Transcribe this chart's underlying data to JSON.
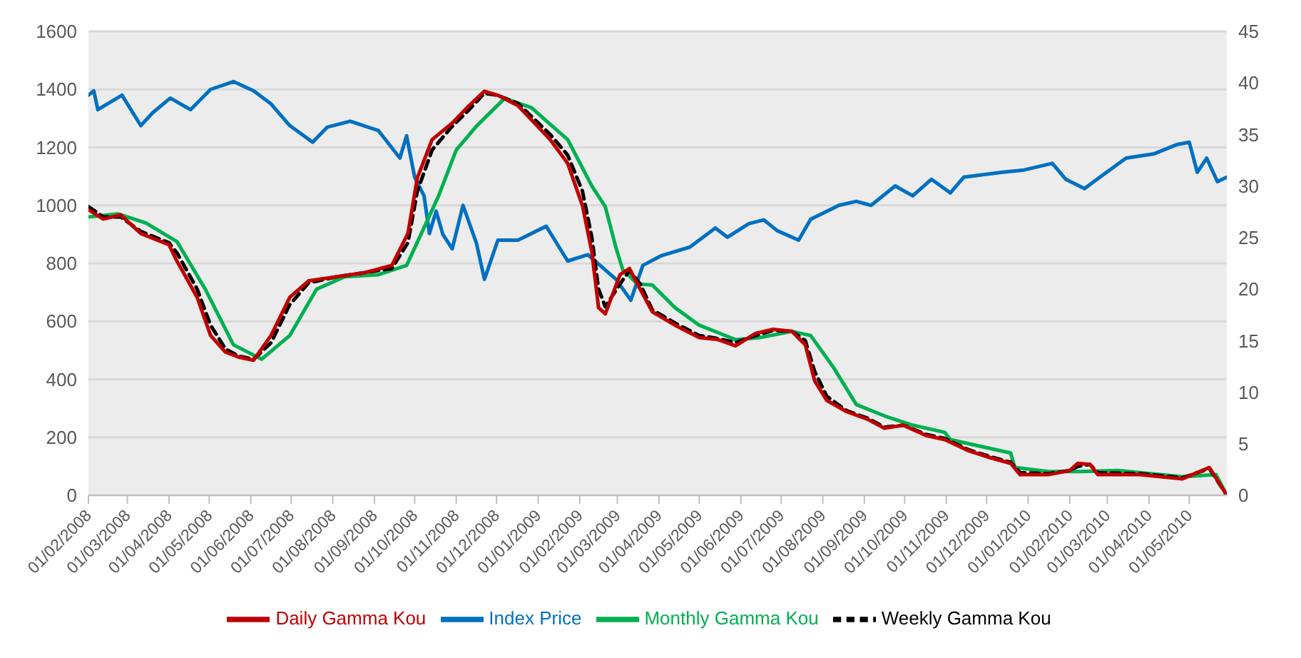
{
  "chart_data": {
    "type": "line",
    "grid": "y",
    "legend": "bottom",
    "ylim": [
      0,
      1600
    ],
    "yticks": [
      0,
      200,
      400,
      600,
      800,
      1000,
      1200,
      1400,
      1600
    ],
    "y2lim": [
      0,
      45
    ],
    "y2ticks": [
      0,
      5,
      10,
      15,
      20,
      25,
      30,
      35,
      40,
      45
    ],
    "xlim": [
      "2008-02-01",
      "2010-05-29"
    ],
    "xticks": [
      {
        "value": "2008-02-01",
        "label": "01/02/2008"
      },
      {
        "value": "2008-03-01",
        "label": "01/03/2008"
      },
      {
        "value": "2008-04-01",
        "label": "01/04/2008"
      },
      {
        "value": "2008-05-01",
        "label": "01/05/2008"
      },
      {
        "value": "2008-06-01",
        "label": "01/06/2008"
      },
      {
        "value": "2008-07-01",
        "label": "01/07/2008"
      },
      {
        "value": "2008-08-01",
        "label": "01/08/2008"
      },
      {
        "value": "2008-09-01",
        "label": "01/09/2008"
      },
      {
        "value": "2008-10-01",
        "label": "01/10/2008"
      },
      {
        "value": "2008-11-01",
        "label": "01/11/2008"
      },
      {
        "value": "2008-12-01",
        "label": "01/12/2008"
      },
      {
        "value": "2009-01-01",
        "label": "01/01/2009"
      },
      {
        "value": "2009-02-01",
        "label": "01/02/2009"
      },
      {
        "value": "2009-03-01",
        "label": "01/03/2009"
      },
      {
        "value": "2009-04-01",
        "label": "01/04/2009"
      },
      {
        "value": "2009-05-01",
        "label": "01/05/2009"
      },
      {
        "value": "2009-06-01",
        "label": "01/06/2009"
      },
      {
        "value": "2009-07-01",
        "label": "01/07/2009"
      },
      {
        "value": "2009-08-01",
        "label": "01/08/2009"
      },
      {
        "value": "2009-09-01",
        "label": "01/09/2009"
      },
      {
        "value": "2009-10-01",
        "label": "01/10/2009"
      },
      {
        "value": "2009-11-01",
        "label": "01/11/2009"
      },
      {
        "value": "2009-12-01",
        "label": "01/12/2009"
      },
      {
        "value": "2010-01-01",
        "label": "01/01/2010"
      },
      {
        "value": "2010-02-01",
        "label": "01/02/2010"
      },
      {
        "value": "2010-03-01",
        "label": "01/03/2010"
      },
      {
        "value": "2010-04-01",
        "label": "01/04/2010"
      },
      {
        "value": "2010-05-01",
        "label": "01/05/2010"
      }
    ],
    "series": [
      {
        "name": "Index Price",
        "color": "#0070c0",
        "x": [
          "2008-02-01",
          "2008-02-05",
          "2008-02-08",
          "2008-02-26",
          "2008-03-11",
          "2008-03-20",
          "2008-04-02",
          "2008-04-17",
          "2008-05-02",
          "2008-05-19",
          "2008-06-03",
          "2008-06-16",
          "2008-06-30",
          "2008-07-17",
          "2008-07-28",
          "2008-08-14",
          "2008-09-04",
          "2008-09-20",
          "2008-09-25",
          "2008-10-01",
          "2008-10-08",
          "2008-10-12",
          "2008-10-17",
          "2008-10-22",
          "2008-10-29",
          "2008-11-06",
          "2008-11-16",
          "2008-11-22",
          "2008-12-02",
          "2008-12-17",
          "2009-01-07",
          "2009-01-23",
          "2009-02-07",
          "2009-02-28",
          "2009-03-11",
          "2009-03-20",
          "2009-04-03",
          "2009-04-24",
          "2009-05-13",
          "2009-05-22",
          "2009-06-07",
          "2009-06-18",
          "2009-06-28",
          "2009-07-14",
          "2009-07-23",
          "2009-08-13",
          "2009-08-26",
          "2009-09-06",
          "2009-09-24",
          "2009-10-07",
          "2009-10-21",
          "2009-11-04",
          "2009-11-14",
          "2009-12-12",
          "2009-12-29",
          "2010-01-19",
          "2010-01-29",
          "2010-02-12",
          "2010-02-26",
          "2010-03-15",
          "2010-04-05",
          "2010-04-22",
          "2010-05-01",
          "2010-05-07",
          "2010-05-14",
          "2010-05-22",
          "2010-05-29"
        ],
        "values": [
          1380,
          1395,
          1330,
          1380,
          1275,
          1320,
          1370,
          1330,
          1400,
          1427,
          1395,
          1350,
          1275,
          1218,
          1270,
          1290,
          1258,
          1163,
          1240,
          1097,
          1033,
          903,
          980,
          900,
          850,
          1000,
          870,
          745,
          880,
          880,
          928,
          808,
          830,
          745,
          673,
          793,
          827,
          856,
          922,
          890,
          937,
          950,
          913,
          880,
          952,
          1000,
          1014,
          1000,
          1067,
          1033,
          1090,
          1043,
          1097,
          1114,
          1122,
          1145,
          1090,
          1058,
          1106,
          1163,
          1178,
          1210,
          1218,
          1114,
          1163,
          1082,
          1097
        ]
      },
      {
        "name": "Monthly Gamma Kou",
        "color": "#00b050",
        "axis": "y2",
        "x": [
          "2008-02-01",
          "2008-02-23",
          "2008-03-15",
          "2008-04-07",
          "2008-04-28",
          "2008-05-19",
          "2008-06-09",
          "2008-06-30",
          "2008-07-20",
          "2008-08-10",
          "2008-09-04",
          "2008-09-25",
          "2008-10-06",
          "2008-10-19",
          "2008-11-01",
          "2008-11-16",
          "2008-12-07",
          "2008-12-27",
          "2009-01-23",
          "2009-02-10",
          "2009-02-20",
          "2009-02-28",
          "2009-03-05",
          "2009-03-16",
          "2009-03-27",
          "2009-04-13",
          "2009-05-01",
          "2009-05-28",
          "2009-06-15",
          "2009-07-09",
          "2009-07-23",
          "2009-08-09",
          "2009-08-26",
          "2009-09-16",
          "2009-10-07",
          "2009-10-31",
          "2009-11-04",
          "2009-12-19",
          "2009-12-22",
          "2010-01-16",
          "2010-02-09",
          "2010-03-09",
          "2010-04-26",
          "2010-05-21",
          "2010-05-29"
        ],
        "values": [
          27.0,
          27.3,
          26.4,
          24.6,
          20.0,
          14.6,
          13.2,
          15.5,
          20.0,
          21.2,
          21.4,
          22.3,
          25.4,
          29.1,
          33.5,
          35.8,
          38.5,
          37.6,
          34.5,
          30.0,
          28.0,
          24.0,
          21.9,
          20.5,
          20.4,
          18.2,
          16.5,
          15.1,
          15.3,
          15.9,
          15.5,
          12.4,
          8.8,
          7.7,
          6.8,
          6.1,
          5.4,
          4.1,
          2.7,
          2.3,
          2.3,
          2.4,
          1.8,
          2.0,
          0
        ]
      },
      {
        "name": "Weekly Gamma Kou",
        "color": "#000000",
        "axis": "y2",
        "line_style": "dashed",
        "x": [
          "2008-02-01",
          "2008-02-12",
          "2008-02-25",
          "2008-03-11",
          "2008-04-01",
          "2008-04-07",
          "2008-04-22",
          "2008-05-02",
          "2008-05-13",
          "2008-05-23",
          "2008-06-03",
          "2008-06-16",
          "2008-06-30",
          "2008-07-14",
          "2008-08-04",
          "2008-08-25",
          "2008-09-14",
          "2008-09-26",
          "2008-10-03",
          "2008-10-14",
          "2008-10-29",
          "2008-11-09",
          "2008-11-22",
          "2008-12-02",
          "2008-12-17",
          "2009-01-10",
          "2009-01-23",
          "2009-02-03",
          "2009-02-10",
          "2009-02-15",
          "2009-02-20",
          "2009-03-03",
          "2009-03-10",
          "2009-03-18",
          "2009-03-27",
          "2009-04-13",
          "2009-05-01",
          "2009-05-15",
          "2009-05-28",
          "2009-06-12",
          "2009-06-25",
          "2009-07-09",
          "2009-07-19",
          "2009-07-26",
          "2009-08-04",
          "2009-08-19",
          "2009-09-03",
          "2009-09-16",
          "2009-09-30",
          "2009-10-17",
          "2009-10-31",
          "2009-11-18",
          "2009-12-05",
          "2009-12-19",
          "2009-12-26",
          "2010-01-16",
          "2010-02-01",
          "2010-02-07",
          "2010-02-16",
          "2010-02-22",
          "2010-03-25",
          "2010-04-26",
          "2010-05-16",
          "2010-05-29"
        ],
        "values": [
          28.0,
          27.0,
          27.0,
          25.6,
          24.5,
          23.5,
          20.0,
          16.5,
          14.2,
          13.5,
          13.2,
          14.8,
          18.5,
          20.6,
          21.2,
          21.6,
          22.0,
          24.5,
          29.5,
          33.5,
          35.8,
          37.2,
          39.0,
          38.8,
          38.0,
          35.0,
          33.0,
          29.5,
          25.0,
          20.0,
          18.3,
          20.5,
          21.8,
          20.5,
          18.0,
          16.7,
          15.5,
          15.2,
          14.8,
          15.5,
          16.0,
          15.9,
          15.0,
          12.0,
          9.6,
          8.2,
          7.5,
          6.6,
          6.8,
          5.9,
          5.5,
          4.4,
          3.7,
          3.2,
          2.2,
          2.1,
          2.4,
          2.8,
          3.0,
          2.2,
          2.1,
          1.7,
          2.6,
          0
        ]
      },
      {
        "name": "Daily Gamma Kou",
        "color": "#c00000",
        "axis": "y2",
        "x": [
          "2008-02-01",
          "2008-02-12",
          "2008-02-25",
          "2008-03-11",
          "2008-04-01",
          "2008-04-07",
          "2008-04-22",
          "2008-05-02",
          "2008-05-13",
          "2008-05-23",
          "2008-06-03",
          "2008-06-16",
          "2008-06-30",
          "2008-07-14",
          "2008-08-04",
          "2008-08-25",
          "2008-09-14",
          "2008-09-26",
          "2008-10-03",
          "2008-10-14",
          "2008-10-29",
          "2008-11-09",
          "2008-11-22",
          "2008-12-02",
          "2008-12-17",
          "2009-01-10",
          "2009-01-23",
          "2009-02-03",
          "2009-02-10",
          "2009-02-15",
          "2009-02-20",
          "2009-03-03",
          "2009-03-10",
          "2009-03-18",
          "2009-03-27",
          "2009-04-13",
          "2009-05-01",
          "2009-05-15",
          "2009-05-28",
          "2009-06-12",
          "2009-06-25",
          "2009-07-09",
          "2009-07-19",
          "2009-07-26",
          "2009-08-04",
          "2009-08-19",
          "2009-09-03",
          "2009-09-16",
          "2009-09-30",
          "2009-10-17",
          "2009-10-31",
          "2009-11-18",
          "2009-12-05",
          "2009-12-19",
          "2009-12-26",
          "2010-01-16",
          "2010-02-01",
          "2010-02-07",
          "2010-02-16",
          "2010-02-22",
          "2010-03-25",
          "2010-04-26",
          "2010-05-16",
          "2010-05-29"
        ],
        "values": [
          27.7,
          26.8,
          27.2,
          25.4,
          24.3,
          22.7,
          19.2,
          15.5,
          13.9,
          13.4,
          13.1,
          15.5,
          19.2,
          20.8,
          21.2,
          21.6,
          22.3,
          25.4,
          30.8,
          34.5,
          36.1,
          37.6,
          39.2,
          38.8,
          37.8,
          34.5,
          32.2,
          28.1,
          23.6,
          18.2,
          17.6,
          21.4,
          22.0,
          20.0,
          17.8,
          16.5,
          15.3,
          15.1,
          14.5,
          15.7,
          16.1,
          15.9,
          14.6,
          11.1,
          9.2,
          8.1,
          7.4,
          6.5,
          6.8,
          5.8,
          5.4,
          4.3,
          3.6,
          3.1,
          2.0,
          2.0,
          2.4,
          3.1,
          3.0,
          2.0,
          2.0,
          1.6,
          2.7,
          0
        ]
      }
    ]
  }
}
